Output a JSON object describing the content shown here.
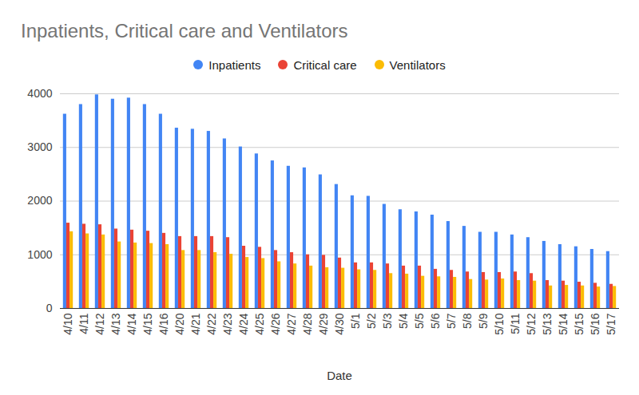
{
  "chart_data": {
    "type": "bar",
    "title": "Inpatients, Critical care and Ventilators",
    "x_label": "Date",
    "categories": [
      "4/10",
      "4/11",
      "4/12",
      "4/13",
      "4/14",
      "4/15",
      "4/16",
      "4/20",
      "4/21",
      "4/22",
      "4/23",
      "4/24",
      "4/25",
      "4/26",
      "4/27",
      "4/28",
      "4/29",
      "4/30",
      "5/1",
      "5/2",
      "5/3",
      "5/4",
      "5/5",
      "5/6",
      "5/7",
      "5/8",
      "5/9",
      "5/10",
      "5/11",
      "5/12",
      "5/13",
      "5/14",
      "5/15",
      "5/16",
      "5/17"
    ],
    "series": [
      {
        "name": "Inpatients",
        "color": "#4285f4",
        "values": [
          3620,
          3800,
          3980,
          3900,
          3920,
          3800,
          3620,
          3360,
          3340,
          3300,
          3160,
          3010,
          2880,
          2750,
          2650,
          2620,
          2490,
          2310,
          2100,
          2090,
          1940,
          1840,
          1800,
          1740,
          1620,
          1530,
          1420,
          1420,
          1370,
          1320,
          1250,
          1190,
          1150,
          1100,
          1060
        ]
      },
      {
        "name": "Critical care",
        "color": "#ea4335",
        "values": [
          1590,
          1570,
          1560,
          1480,
          1460,
          1440,
          1400,
          1340,
          1340,
          1340,
          1320,
          1160,
          1140,
          1080,
          1040,
          1000,
          990,
          940,
          850,
          850,
          830,
          790,
          790,
          730,
          710,
          680,
          670,
          670,
          680,
          650,
          520,
          510,
          490,
          470,
          450
        ]
      },
      {
        "name": "Ventilators",
        "color": "#fbbc04",
        "values": [
          1430,
          1390,
          1370,
          1240,
          1220,
          1210,
          1190,
          1080,
          1080,
          1040,
          1010,
          950,
          930,
          870,
          830,
          790,
          760,
          750,
          720,
          710,
          650,
          640,
          600,
          590,
          580,
          540,
          530,
          550,
          520,
          510,
          420,
          430,
          420,
          400,
          410
        ]
      }
    ],
    "ylim": [
      0,
      4000
    ],
    "yticks": [
      0,
      1000,
      2000,
      3000,
      4000
    ],
    "grid": true,
    "legend": "top"
  }
}
